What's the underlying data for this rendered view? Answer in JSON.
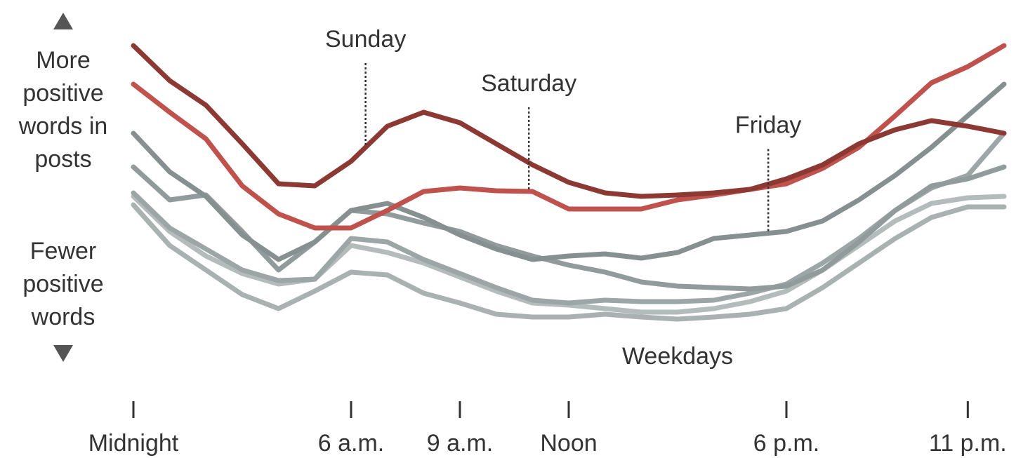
{
  "chart_data": {
    "type": "line",
    "y_label_top": [
      "More",
      "positive",
      "words in",
      "posts"
    ],
    "y_label_bottom": [
      "Fewer",
      "positive",
      "words"
    ],
    "x": [
      0,
      1,
      2,
      3,
      4,
      5,
      6,
      7,
      8,
      9,
      10,
      11,
      12,
      13,
      14,
      15,
      16,
      17,
      18,
      19,
      20,
      21,
      22,
      23,
      24
    ],
    "xlim": [
      0,
      24
    ],
    "xticks": [
      {
        "value": 0,
        "label": "Midnight"
      },
      {
        "value": 6,
        "label": "6 a.m."
      },
      {
        "value": 9,
        "label": "9 a.m."
      },
      {
        "value": 12,
        "label": "Noon"
      },
      {
        "value": 18,
        "label": "6 p.m."
      },
      {
        "value": 23,
        "label": "11 p.m."
      }
    ],
    "ylim": [
      0,
      100
    ],
    "series": [
      {
        "name": "Weekdays",
        "color": "#a9b1b1",
        "values": [
          41.6,
          30,
          23,
          16,
          12,
          17,
          22.4,
          21.6,
          16.4,
          13.6,
          10.4,
          9.6,
          9.6,
          10.4,
          9.6,
          9,
          9.6,
          10.4,
          12,
          18,
          25,
          32,
          38,
          41,
          41
        ]
      },
      {
        "name": "Weekdays",
        "color": "#b4bbbb",
        "values": [
          44,
          34,
          27,
          22,
          19,
          20.4,
          30,
          28,
          25,
          21,
          17,
          13.6,
          13,
          12,
          11,
          11,
          12,
          14,
          17,
          23,
          30,
          37,
          42,
          43.6,
          44
        ]
      },
      {
        "name": "Weekdays",
        "color": "#9da6a6",
        "values": [
          45,
          35,
          29,
          23,
          20,
          20.4,
          32,
          31,
          26,
          22,
          18,
          14.4,
          13.6,
          14.4,
          14,
          14,
          14.4,
          16.4,
          19,
          25,
          32,
          40,
          46.4,
          50,
          62
        ]
      },
      {
        "name": "Weekdays",
        "color": "#919b9b",
        "values": [
          52.4,
          43,
          44.4,
          34,
          23,
          31,
          40,
          39,
          36.4,
          34,
          30,
          27,
          24.4,
          22.4,
          19.6,
          18.4,
          18,
          17.6,
          18.4,
          23,
          31,
          40,
          47,
          49,
          52.4
        ]
      },
      {
        "name": "Friday",
        "color": "#869090",
        "values": [
          62,
          51,
          44,
          33,
          26,
          31,
          40,
          42,
          38,
          33,
          29,
          26,
          27,
          27.6,
          26.4,
          28,
          32,
          33,
          34,
          37,
          43,
          50,
          58,
          67,
          76
        ]
      },
      {
        "name": "Saturday",
        "color": "#c0524d",
        "values": [
          76,
          68,
          60.4,
          47,
          39,
          35,
          35,
          40,
          45.4,
          46.4,
          45.6,
          45.4,
          40.4,
          40.4,
          40.4,
          43,
          44.4,
          46,
          47.6,
          52,
          58,
          67,
          76.4,
          81,
          87
        ]
      },
      {
        "name": "Sunday",
        "color": "#8c3833",
        "values": [
          87,
          77,
          70,
          59,
          47.6,
          47,
          54,
          64,
          68,
          65,
          59,
          53,
          48,
          45,
          44,
          44.4,
          45,
          46,
          49,
          53,
          59,
          63,
          65.6,
          64,
          62
        ]
      }
    ],
    "annotations": [
      {
        "text": "Sunday",
        "x": 6.4,
        "series": 6
      },
      {
        "text": "Saturday",
        "x": 10.9,
        "series": 5
      },
      {
        "text": "Friday",
        "x": 17.5,
        "series": 4
      },
      {
        "text": "Weekdays",
        "x": 15
      }
    ]
  }
}
